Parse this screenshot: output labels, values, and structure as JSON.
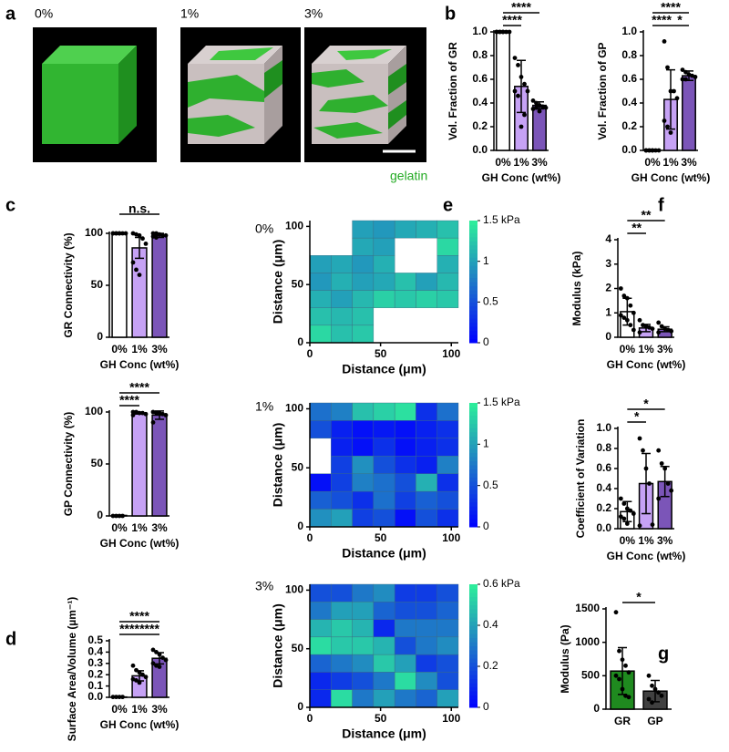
{
  "panel_a": {
    "panel": "a",
    "labels": [
      "0%",
      "1%",
      "3%"
    ],
    "legend": "gelatin"
  },
  "chart_data": [
    {
      "type": "bar",
      "panel": "b",
      "ylabel": "Vol. Fraction of GR",
      "xlabel": "GH Conc (wt%)",
      "categories": [
        "0%",
        "1%",
        "3%"
      ],
      "colors": [
        "#ffffff",
        "#c6a2f5",
        "#7b55b8"
      ],
      "values": [
        1.0,
        0.54,
        0.38
      ],
      "errors": [
        0,
        0.22,
        0.03
      ],
      "points": [
        [
          1,
          1,
          1,
          1,
          1,
          1,
          1,
          1
        ],
        [
          0.78,
          0.72,
          0.62,
          0.56,
          0.5,
          0.5,
          0.46,
          0.2,
          0.3
        ],
        [
          0.42,
          0.4,
          0.38,
          0.37,
          0.36,
          0.35,
          0.36,
          0.33
        ]
      ],
      "ylim": [
        0,
        1.0
      ],
      "yticks": [
        {
          "value": 0,
          "label": "0.0"
        },
        {
          "value": 0.2,
          "label": "0.2"
        },
        {
          "value": 0.4,
          "label": "0.4"
        },
        {
          "value": 0.6,
          "label": "0.6"
        },
        {
          "value": 0.8,
          "label": "0.8"
        },
        {
          "value": 1.0,
          "label": "1.0"
        }
      ],
      "significance": [
        {
          "label": "****",
          "between": [
            0,
            1
          ]
        },
        {
          "label": "****",
          "between": [
            0,
            2
          ]
        }
      ]
    },
    {
      "type": "bar",
      "ylabel": "Vol. Fraction of GP",
      "xlabel": "GH Conc (wt%)",
      "categories": [
        "0%",
        "1%",
        "3%"
      ],
      "colors": [
        "#ffffff",
        "#c6a2f5",
        "#7b55b8"
      ],
      "values": [
        0.005,
        0.43,
        0.63
      ],
      "errors": [
        0,
        0.25,
        0.04
      ],
      "points": [
        [
          0,
          0,
          0,
          0,
          0,
          0,
          0,
          0
        ],
        [
          0.92,
          0.7,
          0.5,
          0.5,
          0.44,
          0.25,
          0.2,
          0.15
        ],
        [
          0.68,
          0.66,
          0.64,
          0.63,
          0.62,
          0.6,
          0.6
        ]
      ],
      "ylim": [
        0,
        1.0
      ],
      "yticks": [
        {
          "value": 0,
          "label": "0.0"
        },
        {
          "value": 0.2,
          "label": "0.2"
        },
        {
          "value": 0.4,
          "label": "0.4"
        },
        {
          "value": 0.6,
          "label": "0.6"
        },
        {
          "value": 0.8,
          "label": "0.8"
        },
        {
          "value": 1.0,
          "label": "1.0"
        }
      ],
      "significance": [
        {
          "label": "****",
          "between": [
            0,
            2
          ]
        },
        {
          "label": "****",
          "between": [
            0,
            1
          ]
        },
        {
          "label": "*",
          "between": [
            1,
            2
          ]
        }
      ]
    },
    {
      "type": "bar",
      "panel": "c",
      "ylabel": "GR Connectivity (%)",
      "xlabel": "GH Conc (wt%)",
      "categories": [
        "0%",
        "1%",
        "3%"
      ],
      "colors": [
        "#ffffff",
        "#c6a2f5",
        "#7b55b8"
      ],
      "values": [
        100,
        86,
        98
      ],
      "errors": [
        0,
        10,
        2
      ],
      "points": [
        [
          100,
          100,
          100,
          100,
          100,
          100,
          100,
          100
        ],
        [
          100,
          99,
          98,
          95,
          90,
          72,
          65,
          60
        ],
        [
          100,
          100,
          99,
          98,
          98,
          97,
          96
        ]
      ],
      "ylim": [
        0,
        100
      ],
      "yticks": [
        0,
        50,
        100
      ],
      "significance": [
        {
          "label": "n.s.",
          "between": [
            0,
            2
          ]
        }
      ]
    },
    {
      "type": "bar",
      "ylabel": "GP Connectivity (%)",
      "xlabel": "GH Conc (wt%)",
      "categories": [
        "0%",
        "1%",
        "3%"
      ],
      "colors": [
        "#ffffff",
        "#c6a2f5",
        "#7b55b8"
      ],
      "values": [
        0.5,
        99,
        97
      ],
      "errors": [
        0,
        1,
        4
      ],
      "points": [
        [
          0,
          0,
          0,
          0
        ],
        [
          100,
          100,
          99,
          99,
          98,
          97
        ],
        [
          100,
          99,
          99,
          98,
          97,
          90
        ]
      ],
      "ylim": [
        0,
        100
      ],
      "yticks": [
        0,
        50,
        100
      ],
      "significance": [
        {
          "label": "****",
          "between": [
            0,
            1
          ]
        },
        {
          "label": "****",
          "between": [
            0,
            2
          ]
        }
      ]
    },
    {
      "type": "bar",
      "panel": "d",
      "ylabel": "Surface Area/Volume (µm⁻¹)",
      "xlabel": "GH Conc (wt%)",
      "categories": [
        "0%",
        "1%",
        "3%"
      ],
      "colors": [
        "#ffffff",
        "#c6a2f5",
        "#7b55b8"
      ],
      "values": [
        0.003,
        0.19,
        0.345
      ],
      "errors": [
        0,
        0.045,
        0.05
      ],
      "points": [
        [
          0.003,
          0.003,
          0.003,
          0.003
        ],
        [
          0.28,
          0.24,
          0.22,
          0.2,
          0.18,
          0.16,
          0.15,
          0.13
        ],
        [
          0.42,
          0.4,
          0.38,
          0.35,
          0.33,
          0.3,
          0.28,
          0.27
        ]
      ],
      "ylim": [
        0,
        0.5
      ],
      "yticks": [
        {
          "value": 0,
          "label": "0.0"
        },
        0.1,
        0.2,
        0.3,
        0.4,
        0.5
      ],
      "significance": [
        {
          "label": "****",
          "between": [
            0,
            1
          ]
        },
        {
          "label": "****",
          "between": [
            0,
            2
          ]
        },
        {
          "label": "****",
          "between": [
            1,
            2
          ]
        }
      ]
    },
    {
      "type": "heatmap",
      "panel": "e",
      "label": "0%",
      "xlabel": "Distance (μm)",
      "ylabel": "Distance (μm)",
      "xlim": [
        0,
        105
      ],
      "ylim": [
        0,
        105
      ],
      "xticks": [
        0,
        50,
        100
      ],
      "yticks": [
        0,
        50,
        100
      ],
      "clim": [
        0,
        1.5
      ],
      "cticks": [
        0,
        0.5,
        1,
        {
          "value": 1.5,
          "label": "1.5 kPa"
        }
      ],
      "values": [
        [
          null,
          null,
          1.0,
          0.95,
          1.05,
          1.1,
          1.2
        ],
        [
          null,
          null,
          1.05,
          1.0,
          null,
          null,
          1.35
        ],
        [
          1.0,
          1.05,
          0.95,
          1.1,
          null,
          null,
          1.1
        ],
        [
          0.95,
          1.1,
          1.0,
          1.05,
          1.2,
          1.0,
          1.15
        ],
        [
          1.1,
          1.0,
          1.15,
          1.3,
          1.25,
          1.3,
          1.25
        ],
        [
          1.2,
          1.15,
          1.2,
          null,
          null,
          null,
          null
        ],
        [
          1.35,
          1.2,
          1.25,
          null,
          null,
          null,
          null
        ]
      ]
    },
    {
      "type": "heatmap",
      "label": "1%",
      "xlabel": "Distance (μm)",
      "ylabel": "Distance (μm)",
      "xlim": [
        0,
        105
      ],
      "ylim": [
        0,
        105
      ],
      "xticks": [
        0,
        50,
        100
      ],
      "yticks": [
        0,
        50,
        100
      ],
      "clim": [
        0,
        1.5
      ],
      "cticks": [
        0,
        0.5,
        1,
        {
          "value": 1.5,
          "label": "1.5 kPa"
        }
      ],
      "values": [
        [
          0.7,
          0.8,
          1.2,
          1.3,
          1.4,
          0.3,
          0.7
        ],
        [
          0.5,
          0.2,
          0.1,
          0.15,
          0.1,
          0.2,
          0.3
        ],
        [
          null,
          0.2,
          0.1,
          0.3,
          0.1,
          0.2,
          0.3
        ],
        [
          null,
          0.4,
          0.9,
          0.5,
          0.3,
          0.2,
          0.8
        ],
        [
          0.1,
          0.4,
          0.8,
          0.7,
          0.5,
          1.1,
          0.3
        ],
        [
          0.6,
          0.5,
          0.3,
          0.7,
          0.4,
          0.6,
          0.5
        ],
        [
          0.9,
          1.0,
          0.4,
          0.5,
          0.1,
          0.5,
          0.3
        ]
      ]
    },
    {
      "type": "heatmap",
      "label": "3%",
      "xlabel": "Distance (μm)",
      "ylabel": "Distance (μm)",
      "xlim": [
        0,
        105
      ],
      "ylim": [
        0,
        105
      ],
      "xticks": [
        0,
        50,
        100
      ],
      "yticks": [
        0,
        50,
        100
      ],
      "clim": [
        0,
        0.6
      ],
      "cticks": [
        0,
        0.2,
        0.4,
        {
          "value": 0.6,
          "label": "0.6 kPa"
        }
      ],
      "values": [
        [
          0.2,
          0.2,
          0.3,
          0.35,
          0.15,
          0.15,
          0.2
        ],
        [
          0.3,
          0.4,
          0.4,
          0.25,
          0.2,
          0.2,
          0.25
        ],
        [
          0.45,
          0.5,
          0.45,
          0.1,
          0.3,
          0.3,
          0.3
        ],
        [
          0.55,
          0.5,
          0.5,
          0.45,
          0.2,
          0.3,
          0.35
        ],
        [
          0.25,
          0.3,
          0.35,
          0.5,
          0.4,
          0.15,
          0.2
        ],
        [
          0.1,
          0.15,
          0.2,
          0.3,
          0.55,
          0.35,
          0.2
        ],
        [
          0.1,
          0.55,
          0.3,
          0.4,
          0.3,
          0.25,
          0.4
        ]
      ]
    },
    {
      "type": "bar",
      "panel": "f",
      "ylabel": "Modulus (kPa)",
      "xlabel": "GH Conc (wt%)",
      "categories": [
        "0%",
        "1%",
        "3%"
      ],
      "colors": [
        "#ffffff",
        "#c6a2f5",
        "#7b55b8"
      ],
      "values": [
        1.05,
        0.38,
        0.33
      ],
      "errors": [
        0.55,
        0.15,
        0.1
      ],
      "points": [
        [
          2.0,
          1.7,
          1.6,
          1.3,
          1.0,
          0.9,
          0.8,
          0.7,
          0.5,
          0.3
        ],
        [
          0.7,
          0.5,
          0.45,
          0.4,
          0.35,
          0.2
        ],
        [
          0.6,
          0.45,
          0.35,
          0.3,
          0.25,
          0.2
        ]
      ],
      "ylim": [
        0,
        4
      ],
      "yticks": [
        0,
        1,
        2,
        3,
        4
      ],
      "significance": [
        {
          "label": "**",
          "between": [
            0,
            1
          ]
        },
        {
          "label": "**",
          "between": [
            0,
            2
          ]
        }
      ]
    },
    {
      "type": "bar",
      "ylabel": "Coefficient of Variation",
      "xlabel": "GH Conc (wt%)",
      "categories": [
        "0%",
        "1%",
        "3%"
      ],
      "colors": [
        "#ffffff",
        "#c6a2f5",
        "#7b55b8"
      ],
      "values": [
        0.17,
        0.45,
        0.47
      ],
      "errors": [
        0.1,
        0.3,
        0.15
      ],
      "points": [
        [
          0.3,
          0.25,
          0.2,
          0.18,
          0.15,
          0.12,
          0.1,
          0.05
        ],
        [
          0.9,
          0.78,
          0.6,
          0.45,
          0.04,
          0.03
        ],
        [
          0.78,
          0.65,
          0.6,
          0.45,
          0.38,
          0.3
        ]
      ],
      "ylim": [
        0,
        1.0
      ],
      "yticks": [
        {
          "value": 0,
          "label": "0.0"
        },
        {
          "value": 0.2,
          "label": "0.2"
        },
        {
          "value": 0.4,
          "label": "0.4"
        },
        {
          "value": 0.6,
          "label": "0.6"
        },
        {
          "value": 0.8,
          "label": "0.8"
        },
        {
          "value": 1.0,
          "label": "1.0"
        }
      ],
      "significance": [
        {
          "label": "*",
          "between": [
            0,
            1
          ]
        },
        {
          "label": "*",
          "between": [
            0,
            2
          ]
        }
      ]
    },
    {
      "type": "bar",
      "panel": "g",
      "ylabel": "Modulus (Pa)",
      "categories": [
        "GR",
        "GP"
      ],
      "colors": [
        "#1f8a1f",
        "#404040"
      ],
      "values": [
        570,
        270
      ],
      "errors": [
        350,
        160
      ],
      "points": [
        [
          1450,
          870,
          740,
          650,
          550,
          500,
          450,
          300,
          200,
          180
        ],
        [
          500,
          350,
          300,
          250,
          200,
          150,
          100
        ]
      ],
      "ylim": [
        0,
        1500
      ],
      "yticks": [
        0,
        500,
        1000,
        1500
      ],
      "significance": [
        {
          "label": "*",
          "between": [
            0,
            1
          ]
        }
      ]
    }
  ]
}
